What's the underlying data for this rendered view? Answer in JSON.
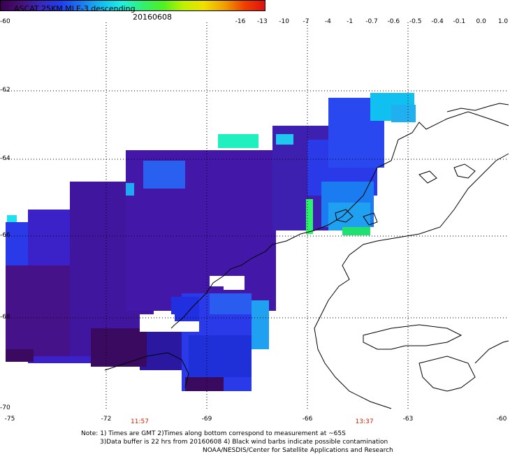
{
  "header": {
    "title": "ASCAT 25KM MLE-3 descending",
    "date": "20160608"
  },
  "colorbar": {
    "labels": [
      "-16",
      "-13",
      "-10",
      "-7",
      "-4",
      "-1",
      "-0.7",
      "-0.6",
      "-0.5",
      "-0.4",
      "-0.1",
      "0.0",
      "1.0"
    ],
    "colors": [
      "#3a0050",
      "#48107a",
      "#3a28c0",
      "#2040f0",
      "#1a7cf0",
      "#10c0f0",
      "#20f0e0",
      "#30f070",
      "#50f020",
      "#c0f000",
      "#f0e000",
      "#f0a000",
      "#f04000",
      "#e01010"
    ]
  },
  "axes": {
    "lat_labels": [
      "-60",
      "-62",
      "-64",
      "-66",
      "-68",
      "-70"
    ],
    "lon_labels": [
      "-75",
      "-72",
      "-69",
      "-66",
      "-63",
      "-60"
    ],
    "lon_range": [
      -75,
      -60
    ],
    "lat_range": [
      -60,
      -70
    ],
    "grid": true
  },
  "pass_times": [
    {
      "label": "11:57",
      "lon": -71.0
    },
    {
      "label": "13:37",
      "lon": -64.3
    }
  ],
  "notes": [
    "Note: 1) Times are GMT 2)Times along bottom correspond to measurement at ~65S",
    "3)Data buffer is 22 hrs from 20160608 4) Black wind barbs indicate possible contamination",
    "NOAA/NESDIS/Center for Satellite Applications and Research"
  ]
}
